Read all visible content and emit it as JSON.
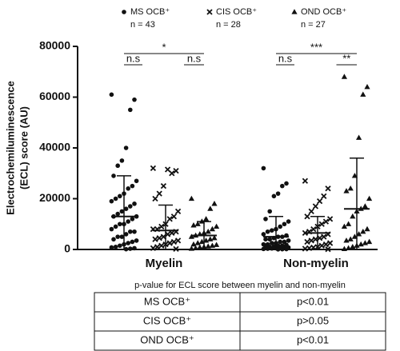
{
  "chart_data": {
    "type": "dot",
    "y_label": [
      "Electrochemiluminescence",
      "(ECL) score (AU)"
    ],
    "categories": [
      "Myelin",
      "Non-myelin"
    ],
    "ylim": [
      0,
      80000
    ],
    "yticks": [
      0,
      20000,
      40000,
      60000,
      80000
    ],
    "series": [
      {
        "name": "MS OCB⁺",
        "n_label": "n = 43",
        "marker": "circle",
        "color": "#111111",
        "values": [
          [
            61000,
            59000,
            55000,
            40000,
            35000,
            33000,
            29000,
            27000,
            25000,
            24000,
            22000,
            21000,
            20000,
            19000,
            18000,
            17000,
            16000,
            15000,
            14000,
            13000,
            13000,
            12000,
            11000,
            10000,
            10000,
            9000,
            8000,
            7000,
            7000,
            6000,
            5000,
            5000,
            4000,
            3500,
            3000,
            2500,
            2000,
            1500,
            1000,
            800,
            500,
            300,
            100
          ],
          [
            32000,
            26000,
            25000,
            22000,
            21000,
            15000,
            12000,
            11000,
            10000,
            9000,
            8000,
            7500,
            7000,
            6000,
            5500,
            5000,
            5000,
            4500,
            4000,
            4000,
            3500,
            3000,
            3000,
            2500,
            2500,
            2000,
            2000,
            1800,
            1500,
            1500,
            1200,
            1000,
            1000,
            800,
            700,
            600,
            500,
            400,
            300,
            200,
            150,
            100,
            50
          ]
        ],
        "center": [
          13000,
          5000
        ],
        "upper": [
          29000,
          13000
        ],
        "lower": [
          0,
          0
        ]
      },
      {
        "name": "CIS OCB⁺",
        "n_label": "n = 28",
        "marker": "cross",
        "color": "#111111",
        "values": [
          [
            32000,
            31000,
            30000,
            31500,
            25000,
            22000,
            20000,
            15000,
            13000,
            12000,
            10000,
            9000,
            8000,
            8000,
            7000,
            6500,
            6000,
            5000,
            4500,
            4000,
            3500,
            3000,
            2500,
            2000,
            1500,
            1000,
            500,
            200
          ],
          [
            27000,
            24000,
            21000,
            19000,
            17000,
            15000,
            13000,
            12000,
            11000,
            10000,
            9000,
            8000,
            7000,
            6500,
            6000,
            5000,
            4500,
            4000,
            3500,
            3000,
            2500,
            2000,
            1500,
            1000,
            800,
            500,
            300,
            100
          ]
        ],
        "center": [
          7500,
          6500
        ],
        "upper": [
          17500,
          13000
        ],
        "lower": [
          0,
          0
        ]
      },
      {
        "name": "OND OCB⁺",
        "n_label": "n = 27",
        "marker": "triangle",
        "color": "#111111",
        "values": [
          [
            20000,
            18000,
            16000,
            12000,
            11000,
            10000,
            9500,
            9000,
            8000,
            7000,
            6500,
            6000,
            5500,
            5000,
            4500,
            4000,
            3500,
            3000,
            2500,
            2000,
            1800,
            1500,
            1200,
            1000,
            800,
            500,
            300
          ],
          [
            68000,
            64000,
            61000,
            44000,
            29000,
            24000,
            23000,
            20000,
            17000,
            16000,
            15000,
            13000,
            10000,
            9000,
            8000,
            7000,
            6000,
            5000,
            4000,
            3500,
            3000,
            2500,
            2000,
            1500,
            1000,
            500,
            200
          ]
        ],
        "center": [
          5500,
          16000
        ],
        "upper": [
          11000,
          36000
        ],
        "lower": [
          0,
          0
        ]
      }
    ],
    "significance": [
      [
        "*",
        "n.s",
        "n.s"
      ],
      [
        "***",
        "n.s",
        "**"
      ]
    ]
  },
  "table": {
    "title": "p-value for ECL score between myelin and non-myelin",
    "rows": [
      [
        "MS OCB⁺",
        "p<0.01"
      ],
      [
        "CIS OCB⁺",
        "p>0.05"
      ],
      [
        "OND OCB⁺",
        "p<0.01"
      ]
    ]
  }
}
